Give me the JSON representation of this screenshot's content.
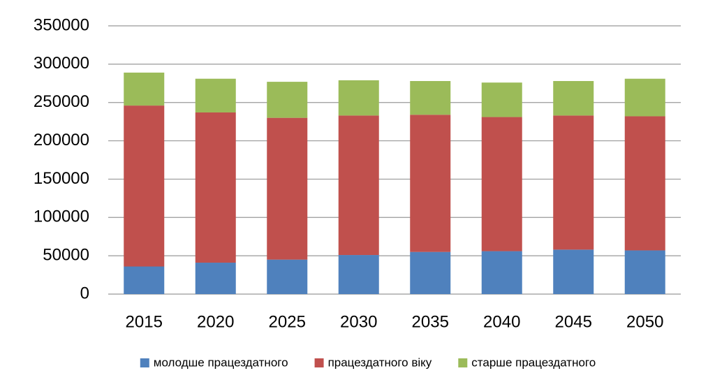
{
  "chart_data": {
    "type": "stacked-bar",
    "categories": [
      "2015",
      "2020",
      "2025",
      "2030",
      "2035",
      "2040",
      "2045",
      "2050"
    ],
    "series": [
      {
        "name": "молодше працездатного",
        "color": "#4f81bd",
        "values": [
          36000,
          41000,
          45000,
          51000,
          55000,
          56000,
          58000,
          57000
        ]
      },
      {
        "name": "працездатного віку",
        "color": "#c0504d",
        "values": [
          210000,
          196000,
          185000,
          182000,
          179000,
          175000,
          175000,
          175000
        ]
      },
      {
        "name": "старше працездатного",
        "color": "#9bbb59",
        "values": [
          43000,
          44000,
          47000,
          46000,
          44000,
          45000,
          45000,
          49000
        ]
      }
    ],
    "ylim": [
      0,
      350000
    ],
    "yticks": [
      0,
      50000,
      100000,
      150000,
      200000,
      250000,
      300000,
      350000
    ],
    "grid": true,
    "legend": "bottom"
  }
}
